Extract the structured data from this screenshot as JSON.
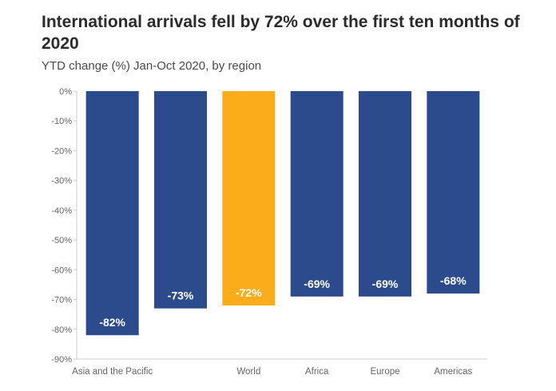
{
  "chart_data": {
    "type": "bar",
    "title": "International arrivals fell by 72% over the first ten months of 2020",
    "subtitle": "YTD change (%) Jan-Oct 2020, by region",
    "categories": [
      "Asia and the Pacific",
      "",
      "World",
      "Africa",
      "Europe",
      "Americas"
    ],
    "values": [
      -82,
      -73,
      -72,
      -69,
      -69,
      -68
    ],
    "data_labels": [
      "-82%",
      "-73%",
      "-72%",
      "-69%",
      "-69%",
      "-68%"
    ],
    "highlight_category": "World",
    "ylim": [
      -90,
      0
    ],
    "yticks": [
      0,
      -10,
      -20,
      -30,
      -40,
      -50,
      -60,
      -70,
      -80,
      -90
    ],
    "ytick_labels": [
      "0%",
      "-10%",
      "-20%",
      "-30%",
      "-40%",
      "-50%",
      "-60%",
      "-70%",
      "-80%",
      "-90%"
    ],
    "grid": false,
    "legend": "none",
    "colors": {
      "bar": "#2b4b8c",
      "highlight": "#fbac1b",
      "axis": "#cccccc",
      "tick_text": "#666666",
      "label_text": "#ffffff"
    }
  }
}
